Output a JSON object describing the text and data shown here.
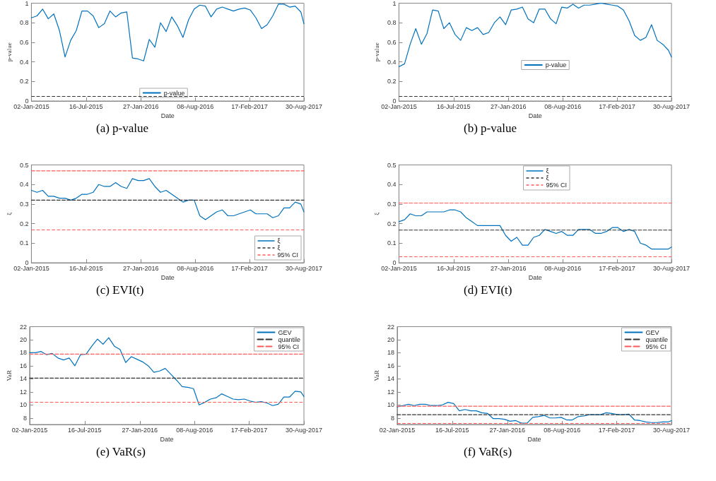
{
  "chart_data": [
    {
      "type": "line",
      "title": "(a) p-value",
      "xlabel": "Date",
      "ylabel": "p-value",
      "grid": false,
      "legend": "bottom",
      "x": [
        "2015-01-02",
        "2015-01-22",
        "2015-02-11",
        "2015-03-03",
        "2015-03-23",
        "2015-04-12",
        "2015-05-02",
        "2015-05-22",
        "2015-06-11",
        "2015-07-01",
        "2015-07-21",
        "2015-08-10",
        "2015-08-30",
        "2015-09-19",
        "2015-10-09",
        "2015-10-29",
        "2015-11-18",
        "2015-12-08",
        "2015-12-28",
        "2016-01-17",
        "2016-02-06",
        "2016-02-26",
        "2016-03-17",
        "2016-04-06",
        "2016-04-26",
        "2016-05-16",
        "2016-06-05",
        "2016-06-25",
        "2016-07-15",
        "2016-08-04",
        "2016-08-24",
        "2016-09-13",
        "2016-10-03",
        "2016-10-23",
        "2016-11-12",
        "2016-12-02",
        "2016-12-22",
        "2017-01-11",
        "2017-01-31",
        "2017-02-20",
        "2017-03-12",
        "2017-04-01",
        "2017-04-21",
        "2017-05-11",
        "2017-05-31",
        "2017-06-20",
        "2017-07-10",
        "2017-07-30",
        "2017-08-19",
        "2017-08-30"
      ],
      "series": [
        {
          "name": "p-value",
          "color": "#0072bd",
          "values": [
            0.85,
            0.87,
            0.94,
            0.84,
            0.89,
            0.72,
            0.45,
            0.62,
            0.72,
            0.92,
            0.92,
            0.87,
            0.75,
            0.79,
            0.92,
            0.86,
            0.9,
            0.91,
            0.44,
            0.43,
            0.41,
            0.63,
            0.55,
            0.8,
            0.71,
            0.86,
            0.77,
            0.65,
            0.83,
            0.94,
            0.98,
            0.97,
            0.86,
            0.94,
            0.96,
            0.94,
            0.92,
            0.94,
            0.95,
            0.93,
            0.85,
            0.74,
            0.78,
            0.87,
            0.99,
            0.99,
            0.96,
            0.97,
            0.91,
            0.79
          ]
        }
      ],
      "ref_lines": [
        {
          "axis": "y",
          "value": 0.05,
          "color": "#333333",
          "line_style": "dashed"
        }
      ],
      "xlim": [
        "2015-01-02",
        "2017-08-30"
      ],
      "xticks": [
        {
          "value": "2015-01-02",
          "label": "02-Jan-2015"
        },
        {
          "value": "2015-07-16",
          "label": "16-Jul-2015"
        },
        {
          "value": "2016-01-27",
          "label": "27-Jan-2016"
        },
        {
          "value": "2016-08-08",
          "label": "08-Aug-2016"
        },
        {
          "value": "2017-02-17",
          "label": "17-Feb-2017"
        },
        {
          "value": "2017-08-30",
          "label": "30-Aug-2017"
        }
      ],
      "ylim": [
        0,
        1
      ],
      "yticks": [
        0,
        0.2,
        0.4,
        0.6,
        0.8,
        1
      ]
    },
    {
      "type": "line",
      "title": "(b) p-value",
      "xlabel": "Date",
      "ylabel": "p-value",
      "grid": false,
      "legend": "center",
      "x": [
        "2015-01-02",
        "2015-01-22",
        "2015-02-11",
        "2015-03-03",
        "2015-03-23",
        "2015-04-12",
        "2015-05-02",
        "2015-05-22",
        "2015-06-11",
        "2015-07-01",
        "2015-07-21",
        "2015-08-10",
        "2015-08-30",
        "2015-09-19",
        "2015-10-09",
        "2015-10-29",
        "2015-11-18",
        "2015-12-08",
        "2015-12-28",
        "2016-01-17",
        "2016-02-06",
        "2016-02-26",
        "2016-03-17",
        "2016-04-06",
        "2016-04-26",
        "2016-05-16",
        "2016-06-05",
        "2016-06-25",
        "2016-07-15",
        "2016-08-04",
        "2016-08-24",
        "2016-09-13",
        "2016-10-03",
        "2016-10-23",
        "2016-11-12",
        "2016-12-02",
        "2016-12-22",
        "2017-01-11",
        "2017-01-31",
        "2017-02-20",
        "2017-03-12",
        "2017-04-01",
        "2017-04-21",
        "2017-05-11",
        "2017-05-31",
        "2017-06-20",
        "2017-07-10",
        "2017-07-30",
        "2017-08-19",
        "2017-08-30"
      ],
      "series": [
        {
          "name": "p-value",
          "color": "#0072bd",
          "values": [
            0.35,
            0.38,
            0.58,
            0.74,
            0.58,
            0.69,
            0.93,
            0.92,
            0.74,
            0.8,
            0.68,
            0.62,
            0.75,
            0.72,
            0.75,
            0.68,
            0.7,
            0.8,
            0.86,
            0.78,
            0.93,
            0.94,
            0.96,
            0.84,
            0.8,
            0.94,
            0.94,
            0.84,
            0.79,
            0.96,
            0.95,
            0.99,
            0.95,
            0.98,
            0.98,
            0.99,
            1,
            0.99,
            0.98,
            0.97,
            0.93,
            0.82,
            0.67,
            0.62,
            0.65,
            0.78,
            0.62,
            0.58,
            0.52,
            0.45
          ]
        }
      ],
      "ref_lines": [
        {
          "axis": "y",
          "value": 0.05,
          "color": "#333333",
          "line_style": "dashed"
        }
      ],
      "xlim": [
        "2015-01-02",
        "2017-08-30"
      ],
      "xticks": [
        {
          "value": "2015-01-02",
          "label": "02-Jan-2015"
        },
        {
          "value": "2015-07-16",
          "label": "16-Jul-2015"
        },
        {
          "value": "2016-01-27",
          "label": "27-Jan-2016"
        },
        {
          "value": "2016-08-08",
          "label": "08-Aug-2016"
        },
        {
          "value": "2017-02-17",
          "label": "17-Feb-2017"
        },
        {
          "value": "2017-08-30",
          "label": "30-Aug-2017"
        }
      ],
      "ylim": [
        0,
        1
      ],
      "yticks": [
        0,
        0.2,
        0.4,
        0.6,
        0.8,
        1
      ]
    },
    {
      "type": "line",
      "title": "(c) EVI(t)",
      "xlabel": "Date",
      "ylabel": "ξ",
      "grid": false,
      "legend": "bottom right",
      "x": [
        "2015-01-02",
        "2015-01-22",
        "2015-02-11",
        "2015-03-03",
        "2015-03-23",
        "2015-04-12",
        "2015-05-02",
        "2015-05-22",
        "2015-06-11",
        "2015-07-01",
        "2015-07-21",
        "2015-08-10",
        "2015-08-30",
        "2015-09-19",
        "2015-10-09",
        "2015-10-29",
        "2015-11-18",
        "2015-12-08",
        "2015-12-28",
        "2016-01-17",
        "2016-02-06",
        "2016-02-26",
        "2016-03-17",
        "2016-04-06",
        "2016-04-26",
        "2016-05-16",
        "2016-06-05",
        "2016-06-25",
        "2016-07-15",
        "2016-08-04",
        "2016-08-24",
        "2016-09-13",
        "2016-10-03",
        "2016-10-23",
        "2016-11-12",
        "2016-12-02",
        "2016-12-22",
        "2017-01-11",
        "2017-01-31",
        "2017-02-20",
        "2017-03-12",
        "2017-04-01",
        "2017-04-21",
        "2017-05-11",
        "2017-05-31",
        "2017-06-20",
        "2017-07-10",
        "2017-07-30",
        "2017-08-19",
        "2017-08-30"
      ],
      "series": [
        {
          "name": "ξ",
          "color": "#0072bd",
          "values": [
            0.37,
            0.36,
            0.37,
            0.34,
            0.34,
            0.33,
            0.33,
            0.32,
            0.33,
            0.35,
            0.35,
            0.36,
            0.4,
            0.39,
            0.39,
            0.41,
            0.39,
            0.38,
            0.43,
            0.42,
            0.42,
            0.43,
            0.39,
            0.36,
            0.37,
            0.35,
            0.33,
            0.31,
            0.32,
            0.32,
            0.24,
            0.22,
            0.24,
            0.26,
            0.27,
            0.24,
            0.24,
            0.25,
            0.26,
            0.27,
            0.25,
            0.25,
            0.25,
            0.23,
            0.24,
            0.28,
            0.28,
            0.31,
            0.3,
            0.26
          ]
        },
        {
          "name": "ξ",
          "color": "#333333",
          "line_style": "dashed",
          "x": [
            "2015-01-02",
            "2017-08-30"
          ],
          "values": [
            0.32,
            0.32
          ]
        },
        {
          "name": "95% CI",
          "color": "#ff5a5a",
          "line_style": "dashed",
          "x": [
            "2015-01-02",
            "2017-08-30"
          ],
          "values": [
            0.47,
            0.47
          ]
        }
      ],
      "ref_lines": [
        {
          "axis": "y",
          "value": 0.167,
          "color": "#ff5a5a",
          "line_style": "dashed"
        }
      ],
      "xlim": [
        "2015-01-02",
        "2017-08-30"
      ],
      "xticks": [
        {
          "value": "2015-01-02",
          "label": "02-Jan-2015"
        },
        {
          "value": "2015-07-16",
          "label": "16-Jul-2015"
        },
        {
          "value": "2016-01-27",
          "label": "27-Jan-2016"
        },
        {
          "value": "2016-08-08",
          "label": "08-Aug-2016"
        },
        {
          "value": "2017-02-17",
          "label": "17-Feb-2017"
        },
        {
          "value": "2017-08-30",
          "label": "30-Aug-2017"
        }
      ],
      "ylim": [
        0,
        0.5
      ],
      "yticks": [
        0,
        0.1,
        0.2,
        0.3,
        0.4,
        0.5
      ]
    },
    {
      "type": "line",
      "title": "(d) EVI(t)",
      "xlabel": "Date",
      "ylabel": "ξ",
      "grid": false,
      "legend": "top",
      "x": [
        "2015-01-02",
        "2015-01-22",
        "2015-02-11",
        "2015-03-03",
        "2015-03-23",
        "2015-04-12",
        "2015-05-02",
        "2015-05-22",
        "2015-06-11",
        "2015-07-01",
        "2015-07-21",
        "2015-08-10",
        "2015-08-30",
        "2015-09-19",
        "2015-10-09",
        "2015-10-29",
        "2015-11-18",
        "2015-12-08",
        "2015-12-28",
        "2016-01-17",
        "2016-02-06",
        "2016-02-26",
        "2016-03-17",
        "2016-04-06",
        "2016-04-26",
        "2016-05-16",
        "2016-06-05",
        "2016-06-25",
        "2016-07-15",
        "2016-08-04",
        "2016-08-24",
        "2016-09-13",
        "2016-10-03",
        "2016-10-23",
        "2016-11-12",
        "2016-12-02",
        "2016-12-22",
        "2017-01-11",
        "2017-01-31",
        "2017-02-20",
        "2017-03-12",
        "2017-04-01",
        "2017-04-21",
        "2017-05-11",
        "2017-05-31",
        "2017-06-20",
        "2017-07-10",
        "2017-07-30",
        "2017-08-19",
        "2017-08-30"
      ],
      "series": [
        {
          "name": "ξ",
          "color": "#0072bd",
          "values": [
            0.21,
            0.22,
            0.25,
            0.24,
            0.24,
            0.26,
            0.26,
            0.26,
            0.26,
            0.27,
            0.27,
            0.26,
            0.23,
            0.21,
            0.19,
            0.19,
            0.19,
            0.19,
            0.19,
            0.14,
            0.11,
            0.13,
            0.09,
            0.09,
            0.13,
            0.14,
            0.17,
            0.16,
            0.15,
            0.16,
            0.14,
            0.14,
            0.17,
            0.17,
            0.17,
            0.15,
            0.15,
            0.16,
            0.18,
            0.18,
            0.16,
            0.17,
            0.16,
            0.1,
            0.09,
            0.07,
            0.07,
            0.07,
            0.07,
            0.08
          ]
        },
        {
          "name": "ξ",
          "color": "#333333",
          "line_style": "dashed",
          "x": [
            "2015-01-02",
            "2017-08-30"
          ],
          "values": [
            0.167,
            0.167
          ]
        },
        {
          "name": "95% CI",
          "color": "#ff5a5a",
          "line_style": "dashed",
          "x": [
            "2015-01-02",
            "2017-08-30"
          ],
          "values": [
            0.305,
            0.305
          ]
        }
      ],
      "ref_lines": [
        {
          "axis": "y",
          "value": 0.031,
          "color": "#ff5a5a",
          "line_style": "dashed"
        }
      ],
      "xlim": [
        "2015-01-02",
        "2017-08-30"
      ],
      "xticks": [
        {
          "value": "2015-01-02",
          "label": "02-Jan-2015"
        },
        {
          "value": "2015-07-16",
          "label": "16-Jul-2015"
        },
        {
          "value": "2016-01-27",
          "label": "27-Jan-2016"
        },
        {
          "value": "2016-08-08",
          "label": "08-Aug-2016"
        },
        {
          "value": "2017-02-17",
          "label": "17-Feb-2017"
        },
        {
          "value": "2017-08-30",
          "label": "30-Aug-2017"
        }
      ],
      "ylim": [
        0,
        0.5
      ],
      "yticks": [
        0,
        0.1,
        0.2,
        0.3,
        0.4,
        0.5
      ]
    },
    {
      "type": "line",
      "title": "(e) VaR(s)",
      "xlabel": "Date",
      "ylabel": "VaR",
      "grid": false,
      "legend": "top right",
      "x": [
        "2015-01-02",
        "2015-01-22",
        "2015-02-11",
        "2015-03-03",
        "2015-03-23",
        "2015-04-12",
        "2015-05-02",
        "2015-05-22",
        "2015-06-11",
        "2015-07-01",
        "2015-07-21",
        "2015-08-10",
        "2015-08-30",
        "2015-09-19",
        "2015-10-09",
        "2015-10-29",
        "2015-11-18",
        "2015-12-08",
        "2015-12-28",
        "2016-01-17",
        "2016-02-06",
        "2016-02-26",
        "2016-03-17",
        "2016-04-06",
        "2016-04-26",
        "2016-05-16",
        "2016-06-05",
        "2016-06-25",
        "2016-07-15",
        "2016-08-04",
        "2016-08-24",
        "2016-09-13",
        "2016-10-03",
        "2016-10-23",
        "2016-11-12",
        "2016-12-02",
        "2016-12-22",
        "2017-01-11",
        "2017-01-31",
        "2017-02-20",
        "2017-03-12",
        "2017-04-01",
        "2017-04-21",
        "2017-05-11",
        "2017-05-31",
        "2017-06-20",
        "2017-07-10",
        "2017-07-30",
        "2017-08-19",
        "2017-08-30"
      ],
      "series": [
        {
          "name": "GEV",
          "color": "#0072bd",
          "values": [
            18,
            18,
            18.2,
            17.7,
            17.9,
            17.2,
            16.9,
            17.2,
            16,
            17.7,
            17.8,
            19,
            20.1,
            19.3,
            20.3,
            19,
            18.5,
            16.5,
            17.4,
            17,
            16.6,
            16,
            15,
            15.2,
            15.6,
            14.7,
            13.8,
            12.8,
            12.7,
            12.5,
            10,
            10.4,
            10.9,
            11.1,
            11.7,
            11.3,
            10.9,
            10.8,
            10.9,
            10.6,
            10.4,
            10.5,
            10.3,
            9.9,
            10.1,
            11.2,
            11.2,
            12.1,
            12,
            11.3
          ]
        },
        {
          "name": "quantile",
          "color": "#333333",
          "line_style": "dashed",
          "x": [
            "2015-01-02",
            "2017-08-30"
          ],
          "values": [
            14.1,
            14.1
          ]
        },
        {
          "name": "95% CI",
          "color": "#ff5a5a",
          "line_style": "dashed",
          "x": [
            "2015-01-02",
            "2017-08-30"
          ],
          "values": [
            17.8,
            17.8
          ]
        }
      ],
      "ref_lines": [
        {
          "axis": "y",
          "value": 10.4,
          "color": "#ff5a5a",
          "line_style": "dashed"
        }
      ],
      "xlim": [
        "2015-01-02",
        "2017-08-30"
      ],
      "xticks": [
        {
          "value": "2015-01-02",
          "label": "02-Jan-2015"
        },
        {
          "value": "2015-07-16",
          "label": "16-Jul-2015"
        },
        {
          "value": "2016-01-27",
          "label": "27-Jan-2016"
        },
        {
          "value": "2016-08-08",
          "label": "08-Aug-2016"
        },
        {
          "value": "2017-02-17",
          "label": "17-Feb-2017"
        },
        {
          "value": "2017-08-30",
          "label": "30-Aug-2017"
        }
      ],
      "ylim": [
        7,
        22
      ],
      "yticks": [
        8,
        10,
        12,
        14,
        16,
        18,
        20,
        22
      ]
    },
    {
      "type": "line",
      "title": "(f) VaR(s)",
      "xlabel": "Date",
      "ylabel": "VaR",
      "grid": false,
      "legend": "top right",
      "x": [
        "2015-01-02",
        "2015-01-22",
        "2015-02-11",
        "2015-03-03",
        "2015-03-23",
        "2015-04-12",
        "2015-05-02",
        "2015-05-22",
        "2015-06-11",
        "2015-07-01",
        "2015-07-21",
        "2015-08-10",
        "2015-08-30",
        "2015-09-19",
        "2015-10-09",
        "2015-10-29",
        "2015-11-18",
        "2015-12-08",
        "2015-12-28",
        "2016-01-17",
        "2016-02-06",
        "2016-02-26",
        "2016-03-17",
        "2016-04-06",
        "2016-04-26",
        "2016-05-16",
        "2016-06-05",
        "2016-06-25",
        "2016-07-15",
        "2016-08-04",
        "2016-08-24",
        "2016-09-13",
        "2016-10-03",
        "2016-10-23",
        "2016-11-12",
        "2016-12-02",
        "2016-12-22",
        "2017-01-11",
        "2017-01-31",
        "2017-02-20",
        "2017-03-12",
        "2017-04-01",
        "2017-04-21",
        "2017-05-11",
        "2017-05-31",
        "2017-06-20",
        "2017-07-10",
        "2017-07-30",
        "2017-08-19",
        "2017-08-30"
      ],
      "series": [
        {
          "name": "GEV",
          "color": "#0072bd",
          "values": [
            9.7,
            9.9,
            10.1,
            9.9,
            10.1,
            10.1,
            9.9,
            9.9,
            10,
            10.4,
            10.2,
            9.1,
            9.3,
            9.1,
            9.1,
            8.8,
            8.7,
            7.9,
            7.9,
            7.8,
            7.5,
            7.6,
            7.2,
            7.2,
            8.1,
            8.2,
            8.4,
            8,
            8,
            8.1,
            7.7,
            7.7,
            8.2,
            8.3,
            8.5,
            8.5,
            8.5,
            8.8,
            8.7,
            8.5,
            8.5,
            8.6,
            7.7,
            7.6,
            7.4,
            7.3,
            7.3,
            7.4,
            7.4,
            7.6
          ]
        },
        {
          "name": "quantile",
          "color": "#333333",
          "line_style": "dashed",
          "x": [
            "2015-01-02",
            "2017-08-30"
          ],
          "values": [
            8.5,
            8.5
          ]
        },
        {
          "name": "95% CI",
          "color": "#ff5a5a",
          "line_style": "dashed",
          "x": [
            "2015-01-02",
            "2017-08-30"
          ],
          "values": [
            9.8,
            9.8
          ]
        }
      ],
      "ref_lines": [
        {
          "axis": "y",
          "value": 7.2,
          "color": "#ff5a5a",
          "line_style": "dashed"
        }
      ],
      "xlim": [
        "2015-01-02",
        "2017-08-30"
      ],
      "xticks": [
        {
          "value": "2015-01-02",
          "label": "02-Jan-2015"
        },
        {
          "value": "2015-07-16",
          "label": "16-Jul-2015"
        },
        {
          "value": "2016-01-27",
          "label": "27-Jan-2016"
        },
        {
          "value": "2016-08-08",
          "label": "08-Aug-2016"
        },
        {
          "value": "2017-02-17",
          "label": "17-Feb-2017"
        },
        {
          "value": "2017-08-30",
          "label": "30-Aug-2017"
        }
      ],
      "ylim": [
        7,
        22
      ],
      "yticks": [
        8,
        10,
        12,
        14,
        16,
        18,
        20,
        22
      ]
    }
  ]
}
